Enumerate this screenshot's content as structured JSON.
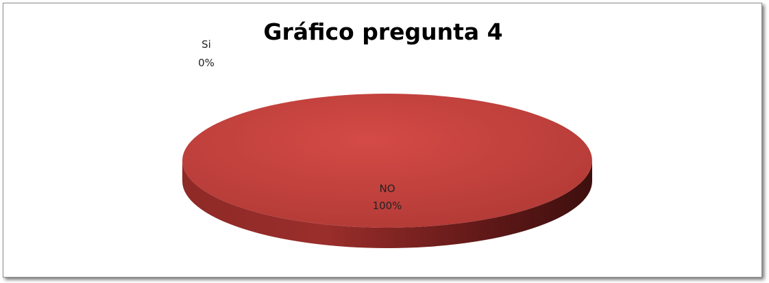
{
  "chart_data": {
    "type": "pie",
    "title": "Gráfico pregunta 4",
    "style": "3d",
    "legend": "none",
    "slices": [
      {
        "label": "Si",
        "value": 0,
        "percent_label": "0%",
        "color": "#4f81bd"
      },
      {
        "label": "NO",
        "value": 100,
        "percent_label": "100%",
        "color": "#c0504d"
      }
    ]
  }
}
